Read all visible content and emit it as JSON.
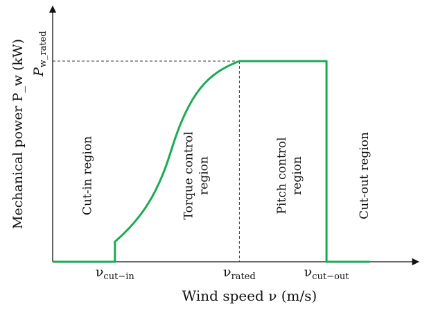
{
  "chart_data": {
    "type": "line",
    "title": "",
    "xlabel": "Wind speed ν (m/s)",
    "ylabel": "Mechanical power P_w (kW)",
    "x_ticks": [
      {
        "symbol": "ν",
        "sub": "cut−in"
      },
      {
        "symbol": "ν",
        "sub": "rated"
      },
      {
        "symbol": "ν",
        "sub": "cut−out"
      }
    ],
    "y_ticks": [
      {
        "symbol": "P",
        "sub": "w_rated"
      }
    ],
    "regions": [
      [
        "Cut-in region"
      ],
      [
        "Torque control",
        "region"
      ],
      [
        "Pitch control",
        "region"
      ],
      [
        "Cut-out region"
      ]
    ],
    "series": [
      {
        "color": "#1aaa55",
        "segments": [
          {
            "kind": "line",
            "points": [
              [
                0,
                0
              ],
              [
                1,
                0
              ],
              [
                1,
                0.1
              ]
            ]
          },
          {
            "kind": "curve",
            "from": [
              1,
              0.1
            ],
            "to": [
              3,
              1
            ],
            "inflection": [
              1.9,
              0.55
            ]
          },
          {
            "kind": "line",
            "points": [
              [
                3,
                1
              ],
              [
                4.4,
                1
              ],
              [
                4.4,
                0
              ],
              [
                5.1,
                0
              ]
            ]
          }
        ]
      }
    ],
    "x_markers": {
      "cut_in": 1,
      "rated": 3,
      "cut_out": 4.4
    },
    "xlim": [
      0,
      5.1
    ],
    "ylim": [
      0,
      1.05
    ],
    "guides": {
      "rated_power_dashed": true,
      "rated_speed_dashed": true
    },
    "grid": false,
    "legend": "none"
  }
}
